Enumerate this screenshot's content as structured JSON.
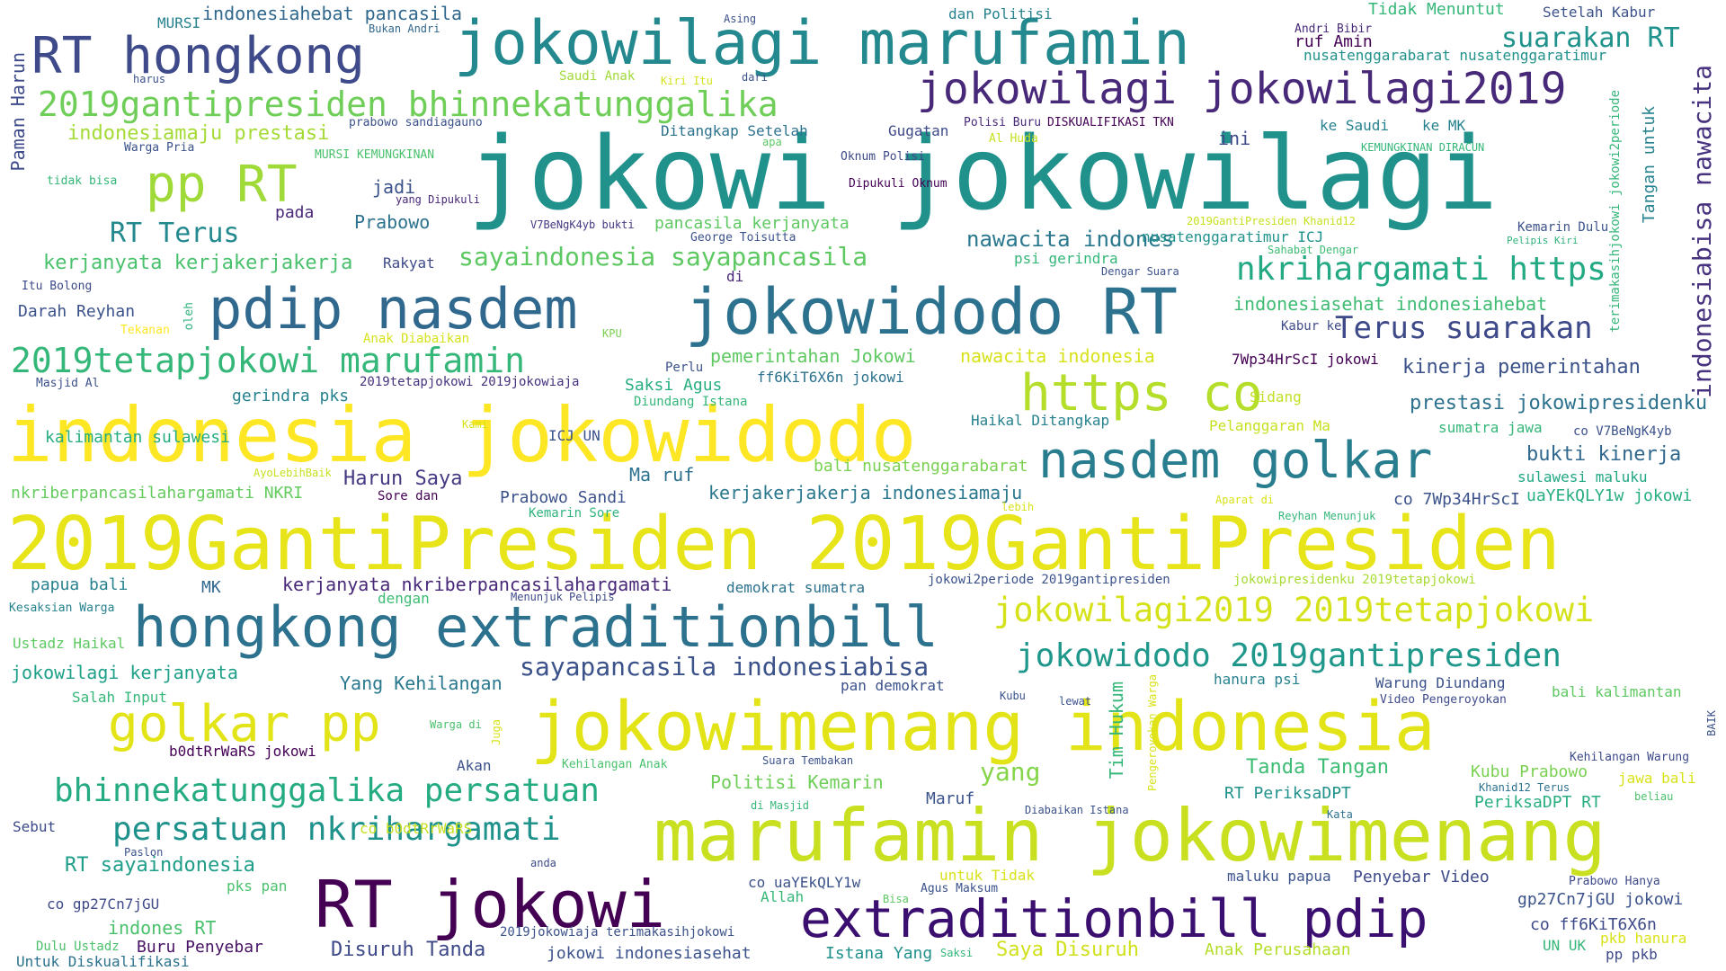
{
  "palette": {
    "yellow": "#f3e41c",
    "lime": "#b7d632",
    "green": "#6dcd59",
    "teal_green": "#35b779",
    "teal": "#1f9e89",
    "cyan_blue": "#26828e",
    "blue": "#31688e",
    "indigo": "#3e4a89",
    "purple": "#482878",
    "dark_purple": "#440154"
  },
  "words": [
    {
      "text": "jokowi jokowilagi",
      "color": "#21918c"
    },
    {
      "text": "2019GantiPresiden 2019GantiPresiden",
      "color": "#e7e419"
    },
    {
      "text": "indonesia jokowidodo",
      "color": "#fde725"
    },
    {
      "text": "marufamin jokowimenang",
      "color": "#c8e020"
    },
    {
      "text": "jokowimenang indonesia",
      "color": "#e2e418"
    },
    {
      "text": "jokowilagi marufamin",
      "color": "#23898e"
    },
    {
      "text": "jokowidodo RT",
      "color": "#2c728e"
    },
    {
      "text": "hongkong extraditionbill",
      "color": "#2c728e"
    },
    {
      "text": "extraditionbill pdip",
      "color": "#3b0f70"
    },
    {
      "text": "RT jokowi",
      "color": "#440154"
    },
    {
      "text": "pdip nasdem",
      "color": "#31688e"
    },
    {
      "text": "RT hongkong",
      "color": "#3e4a89"
    },
    {
      "text": "golkar pp",
      "color": "#e2e418"
    },
    {
      "text": "jokowilagi jokowilagi2019",
      "color": "#482878"
    },
    {
      "text": "nasdem golkar",
      "color": "#287d8e"
    },
    {
      "text": "https co",
      "color": "#b5de2b"
    },
    {
      "text": "pp RT",
      "color": "#a0da39"
    },
    {
      "text": "2019gantipresiden bhinnekatunggalika",
      "color": "#6ece58"
    },
    {
      "text": "2019tetapjokowi marufamin",
      "color": "#35b779"
    },
    {
      "text": "jokowilagi2019 2019tetapjokowi",
      "color": "#d5e21a"
    },
    {
      "text": "jokowidodo 2019gantipresiden",
      "color": "#1f988b"
    },
    {
      "text": "bhinnekatunggalika persatuan",
      "color": "#25ab82"
    },
    {
      "text": "persatuan nkrihargamati",
      "color": "#20928c"
    },
    {
      "text": "nkrihargamati https",
      "color": "#23a983"
    },
    {
      "text": "Terus suarakan",
      "color": "#3e4989"
    },
    {
      "text": "suarakan RT",
      "color": "#20928c"
    },
    {
      "text": "sayaindonesia sayapancasila",
      "color": "#5ec962"
    },
    {
      "text": "sayapancasila indonesiabisa",
      "color": "#3b528b"
    },
    {
      "text": "indonesiabisa nawacita",
      "color": "#46327e"
    },
    {
      "text": "RT Terus",
      "color": "#23898e"
    },
    {
      "text": "indonesiamaju prestasi",
      "color": "#a5db36"
    },
    {
      "text": "kerjanyata kerjakerjakerja",
      "color": "#4ac16d"
    },
    {
      "text": "nawacita indones",
      "color": "#2a788e"
    },
    {
      "text": "indonesiasehat indonesiahebat",
      "color": "#3fbc73"
    },
    {
      "text": "prestasi jokowipresidenku",
      "color": "#2c728e"
    },
    {
      "text": "kinerja pemerintahan",
      "color": "#3b528b"
    },
    {
      "text": "bukti kinerja",
      "color": "#31688e"
    },
    {
      "text": "pemerintahan Jokowi",
      "color": "#5ec962"
    },
    {
      "text": "nawacita indonesia",
      "color": "#d8e219"
    },
    {
      "text": "kerjakerjakerja indonesiamaju",
      "color": "#2a788e"
    },
    {
      "text": "bali nusatenggarabarat",
      "color": "#7ad151"
    },
    {
      "text": "kerjanyata nkriberpancasilahargamati",
      "color": "#482878"
    },
    {
      "text": "nkriberpancasilahargamati NKRI",
      "color": "#65cb5e"
    },
    {
      "text": "kalimantan sulawesi",
      "color": "#26ad81"
    },
    {
      "text": "Harun Saya",
      "color": "#443983"
    },
    {
      "text": "Ma ruf",
      "color": "#2c728e"
    },
    {
      "text": "Tim Hukum",
      "color": "#35b779"
    },
    {
      "text": "Tanda Tangan",
      "color": "#3dbc74"
    },
    {
      "text": "Kubu Prabowo",
      "color": "#7ad151"
    },
    {
      "text": "jokowilagi kerjanyata",
      "color": "#1fa088"
    },
    {
      "text": "Yang Kehilangan",
      "color": "#2a788e"
    },
    {
      "text": "yang",
      "color": "#86d549"
    },
    {
      "text": "Politisi Kemarin",
      "color": "#6ece58"
    },
    {
      "text": "Maruf",
      "color": "#3b528b"
    },
    {
      "text": "RT PeriksaDPT",
      "color": "#21918c"
    },
    {
      "text": "PeriksaDPT RT",
      "color": "#29af7f"
    },
    {
      "text": "RT sayaindonesia",
      "color": "#1f9e89"
    },
    {
      "text": "Disuruh Tanda",
      "color": "#3e4a89"
    },
    {
      "text": "Saya Disuruh",
      "color": "#d0e11c"
    },
    {
      "text": "jokowi indonesiasehat",
      "color": "#3b528b"
    },
    {
      "text": "Istana Yang",
      "color": "#21918c"
    },
    {
      "text": "Anak Perusahaan",
      "color": "#b5de2b"
    },
    {
      "text": "Penyebar Video",
      "color": "#3e4a89"
    },
    {
      "text": "gp27Cn7jGU jokowi",
      "color": "#3b528b"
    },
    {
      "text": "co ff6KiT6X6n",
      "color": "#3e4989"
    },
    {
      "text": "indones RT",
      "color": "#4ac16d"
    },
    {
      "text": "Buru Penyebar",
      "color": "#471164"
    },
    {
      "text": "co gp27Cn7jGU",
      "color": "#3e4a89"
    },
    {
      "text": "pks pan",
      "color": "#4ac16d"
    },
    {
      "text": "papua bali",
      "color": "#26828e"
    },
    {
      "text": "MK",
      "color": "#31688e"
    },
    {
      "text": "dengan",
      "color": "#3dbc74"
    },
    {
      "text": "demokrat sumatra",
      "color": "#2c728e"
    },
    {
      "text": "jokowi2periode 2019gantipresiden",
      "color": "#3b528b"
    },
    {
      "text": "jokowipresidenku 2019tetapjokowi",
      "color": "#a8db34"
    },
    {
      "text": "uaYEkQLY1w jokowi",
      "color": "#26ad81"
    },
    {
      "text": "co 7Wp34HrScI",
      "color": "#3b528b"
    },
    {
      "text": "sulawesi maluku",
      "color": "#22a785"
    },
    {
      "text": "sumatra jawa",
      "color": "#35b779"
    },
    {
      "text": "co V7BeNgK4yb",
      "color": "#3b528b"
    },
    {
      "text": "7Wp34HrScI jokowi",
      "color": "#440154"
    },
    {
      "text": "Sidang",
      "color": "#c2df23"
    },
    {
      "text": "Pelanggaran Ma",
      "color": "#c8e020"
    },
    {
      "text": "Haikal Ditangkap",
      "color": "#26828e"
    },
    {
      "text": "ff6KiT6X6n jokowi",
      "color": "#2c728e"
    },
    {
      "text": "Saksi Agus",
      "color": "#29af7f"
    },
    {
      "text": "Diundang Istana",
      "color": "#35b779"
    },
    {
      "text": "2019tetapjokowi 2019jokowiaja",
      "color": "#46327e"
    },
    {
      "text": "gerindra pks",
      "color": "#26828e"
    },
    {
      "text": "Masjid Al",
      "color": "#3b528b"
    },
    {
      "text": "Perlu",
      "color": "#3b528b"
    },
    {
      "text": "ICJ UN",
      "color": "#3b528b"
    },
    {
      "text": "Prabowo Sandi",
      "color": "#3b528b"
    },
    {
      "text": "Kemarin Sore",
      "color": "#2fb47c"
    },
    {
      "text": "Sore dan",
      "color": "#440154"
    },
    {
      "text": "https co",
      "color": "#b5de2b"
    },
    {
      "text": "Darah Reyhan",
      "color": "#3b528b"
    },
    {
      "text": "Itu Bolong",
      "color": "#3e4a89"
    },
    {
      "text": "Tekanan",
      "color": "#fde725"
    },
    {
      "text": "oleh",
      "color": "#2fb47c"
    },
    {
      "text": "Anak Diabaikan",
      "color": "#d5e21a"
    },
    {
      "text": "KPU",
      "color": "#7ad151"
    },
    {
      "text": "Rakyat",
      "color": "#3e4a89"
    },
    {
      "text": "di",
      "color": "#482878"
    },
    {
      "text": "Kabur ke",
      "color": "#3e4a89"
    },
    {
      "text": "Dengar Suara",
      "color": "#3b528b"
    },
    {
      "text": "psi gerindra",
      "color": "#35b779"
    },
    {
      "text": "Sahabat Dengar",
      "color": "#3dbc74"
    },
    {
      "text": "nusatenggaratimur ICJ",
      "color": "#20928c"
    },
    {
      "text": "Kemarin Dulu",
      "color": "#3b528b"
    },
    {
      "text": "Pelipis Kiri",
      "color": "#2fb47c"
    },
    {
      "text": "Tangan untuk",
      "color": "#26828e"
    },
    {
      "text": "terimakasihjokowi jokowi2periode",
      "color": "#35b779"
    },
    {
      "text": "2019GantiPresiden Khanid12",
      "color": "#c8e020"
    },
    {
      "text": "George Toisutta",
      "color": "#3b528b"
    },
    {
      "text": "V7BeNgK4yb bukti",
      "color": "#443983"
    },
    {
      "text": "pancasila kerjanyata",
      "color": "#5ec962"
    },
    {
      "text": "Prabowo",
      "color": "#2c728e"
    },
    {
      "text": "jadi",
      "color": "#3b528b"
    },
    {
      "text": "yang Dipukuli",
      "color": "#482878"
    },
    {
      "text": "pada",
      "color": "#482878"
    },
    {
      "text": "tidak bisa",
      "color": "#35b779"
    },
    {
      "text": "Paman Harun",
      "color": "#3e4a89"
    },
    {
      "text": "MURSI KEMUNGKINAN",
      "color": "#4ac16d"
    },
    {
      "text": "Warga Pria",
      "color": "#3b528b"
    },
    {
      "text": "prabowo sandiagauno",
      "color": "#3b528b"
    },
    {
      "text": "Ditangkap Setelah",
      "color": "#2c728e"
    },
    {
      "text": "Oknum Polisi",
      "color": "#3e4a89"
    },
    {
      "text": "Dipukuli Oknum",
      "color": "#440154"
    },
    {
      "text": "apa",
      "color": "#5ec962"
    },
    {
      "text": "Gugatan",
      "color": "#3e4a89"
    },
    {
      "text": "Polisi Buru",
      "color": "#482878"
    },
    {
      "text": "DISKUALIFIKASI TKN",
      "color": "#440154"
    },
    {
      "text": "Al Huda",
      "color": "#c8e020"
    },
    {
      "text": "ini",
      "color": "#3e4a89"
    },
    {
      "text": "ke Saudi",
      "color": "#26828e"
    },
    {
      "text": "ke MK",
      "color": "#26828e"
    },
    {
      "text": "KEMUNGKINAN DIRACUN",
      "color": "#35b779"
    },
    {
      "text": "Saudi Anak",
      "color": "#a0da39"
    },
    {
      "text": "Kiri Itu",
      "color": "#d5e21a"
    },
    {
      "text": "dari",
      "color": "#3b528b"
    },
    {
      "text": "harus",
      "color": "#3b528b"
    },
    {
      "text": "MURSI",
      "color": "#26828e"
    },
    {
      "text": "indonesiahebat pancasila",
      "color": "#31688e"
    },
    {
      "text": "Bukan Andri",
      "color": "#31688e"
    },
    {
      "text": "Asing",
      "color": "#3b528b"
    },
    {
      "text": "dan Politisi",
      "color": "#26828e"
    },
    {
      "text": "Tidak Menuntut",
      "color": "#35b779"
    },
    {
      "text": "Andri Bibir",
      "color": "#482878"
    },
    {
      "text": "ruf Amin",
      "color": "#440154"
    },
    {
      "text": "Setelah Kabur",
      "color": "#3b528b"
    },
    {
      "text": "nusatenggarabarat nusatenggaratimur",
      "color": "#21918c"
    },
    {
      "text": "Kesaksian Warga",
      "color": "#26828e"
    },
    {
      "text": "Ustadz Haikal",
      "color": "#5ec962"
    },
    {
      "text": "Salah Input",
      "color": "#35b779"
    },
    {
      "text": "Menunjuk Pelipis",
      "color": "#3e4a89"
    },
    {
      "text": "pan demokrat",
      "color": "#3b528b"
    },
    {
      "text": "hanura psi",
      "color": "#26828e"
    },
    {
      "text": "Warung Diundang",
      "color": "#3b528b"
    },
    {
      "text": "Video Pengeroyokan",
      "color": "#3e4a89"
    },
    {
      "text": "bali kalimantan",
      "color": "#5ec962"
    },
    {
      "text": "Kubu",
      "color": "#3b528b"
    },
    {
      "text": "lewat",
      "color": "#3b528b"
    },
    {
      "text": "Pengeroyokan Warga",
      "color": "#d8e219"
    },
    {
      "text": "Warga di",
      "color": "#4ac16d"
    },
    {
      "text": "Juga",
      "color": "#d8e219"
    },
    {
      "text": "b0dtRrWaRS jokowi",
      "color": "#440154"
    },
    {
      "text": "Akan",
      "color": "#3b528b"
    },
    {
      "text": "Kehilangan Anak",
      "color": "#4ac16d"
    },
    {
      "text": "Suara Tembakan",
      "color": "#3b528b"
    },
    {
      "text": "BAIK",
      "color": "#3b528b"
    },
    {
      "text": "Kehilangan Warung",
      "color": "#3e4a89"
    },
    {
      "text": "jawa bali",
      "color": "#d8e219"
    },
    {
      "text": "Khanid12 Terus",
      "color": "#2c728e"
    },
    {
      "text": "beliau",
      "color": "#4ac16d"
    },
    {
      "text": "Kata",
      "color": "#2c728e"
    },
    {
      "text": "Diabaikan Istana",
      "color": "#3b528b"
    },
    {
      "text": "di Masjid",
      "color": "#35b779"
    },
    {
      "text": "Sebut",
      "color": "#3e4a89"
    },
    {
      "text": "Paslon",
      "color": "#3b528b"
    },
    {
      "text": "co b0dtRrWaRS",
      "color": "#c8e020"
    },
    {
      "text": "anda",
      "color": "#3e4a89"
    },
    {
      "text": "untuk Tidak",
      "color": "#d8e219"
    },
    {
      "text": "co uaYEkQLY1w",
      "color": "#3b528b"
    },
    {
      "text": "Allah",
      "color": "#35b779"
    },
    {
      "text": "Agus Maksum",
      "color": "#3b528b"
    },
    {
      "text": "Bisa",
      "color": "#5ec962"
    },
    {
      "text": "maluku papua",
      "color": "#3b528b"
    },
    {
      "text": "Prabowo Hanya",
      "color": "#3e4a89"
    },
    {
      "text": "pkb hanura",
      "color": "#d8e219"
    },
    {
      "text": "UN UK",
      "color": "#35b779"
    },
    {
      "text": "pp pkb",
      "color": "#3e4a89"
    },
    {
      "text": "Saksi",
      "color": "#35b779"
    },
    {
      "text": "2019jokowiaja terimakasihjokowi",
      "color": "#3b528b"
    },
    {
      "text": "Dulu Ustadz",
      "color": "#4ac16d"
    },
    {
      "text": "Untuk Diskualifikasi",
      "color": "#2c728e"
    },
    {
      "text": "AyoLebihBaik",
      "color": "#c8e020"
    },
    {
      "text": "Kami",
      "color": "#d8e219"
    },
    {
      "text": "lebih",
      "color": "#d8e219"
    },
    {
      "text": "Aparat di",
      "color": "#d8e219"
    },
    {
      "text": "Reyhan Menunjuk",
      "color": "#35b779"
    }
  ]
}
